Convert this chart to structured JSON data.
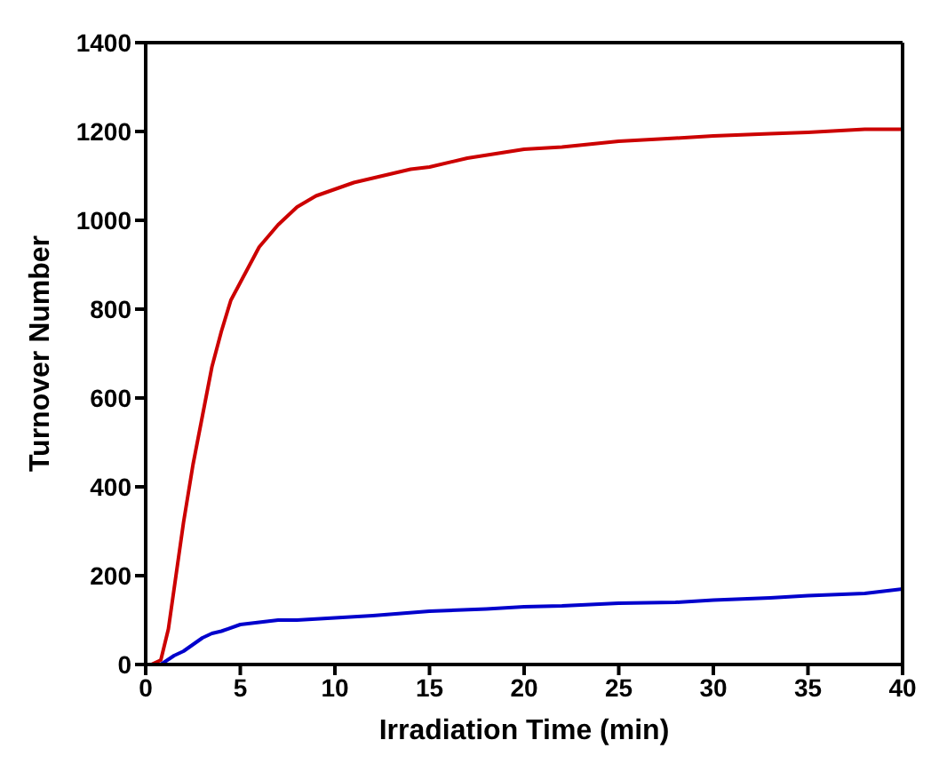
{
  "chart_data": {
    "type": "line",
    "xlabel": "Irradiation Time (min)",
    "ylabel": "Turnover Number",
    "xlim": [
      0,
      40
    ],
    "xticks": [
      0,
      5,
      10,
      15,
      20,
      25,
      30,
      35,
      40
    ],
    "ylim": [
      0,
      1400
    ],
    "yticks": [
      0,
      200,
      400,
      600,
      800,
      1000,
      1200,
      1400
    ],
    "marker": "none",
    "line_style": "solid",
    "series": [
      {
        "color": "#cc0000",
        "x": [
          0.3,
          0.8,
          1.2,
          1.6,
          2,
          2.5,
          3,
          3.5,
          4,
          4.5,
          5,
          5.5,
          6,
          7,
          8,
          9,
          10,
          11,
          12,
          13,
          14,
          15,
          17,
          20,
          22,
          25,
          28,
          30,
          33,
          35,
          38,
          40
        ],
        "values": [
          0,
          10,
          80,
          200,
          320,
          450,
          560,
          670,
          750,
          820,
          860,
          900,
          940,
          990,
          1030,
          1055,
          1070,
          1085,
          1095,
          1105,
          1115,
          1120,
          1140,
          1160,
          1165,
          1178,
          1185,
          1190,
          1195,
          1198,
          1205,
          1205
        ]
      },
      {
        "color": "#0000cc",
        "x": [
          0.8,
          1.5,
          2,
          2.5,
          3,
          3.5,
          4,
          5,
          6,
          7,
          8,
          10,
          12,
          15,
          18,
          20,
          22,
          25,
          28,
          30,
          33,
          35,
          38,
          40
        ],
        "values": [
          0,
          20,
          30,
          45,
          60,
          70,
          75,
          90,
          95,
          100,
          100,
          105,
          110,
          120,
          125,
          130,
          132,
          138,
          140,
          145,
          150,
          155,
          160,
          170
        ]
      }
    ]
  }
}
